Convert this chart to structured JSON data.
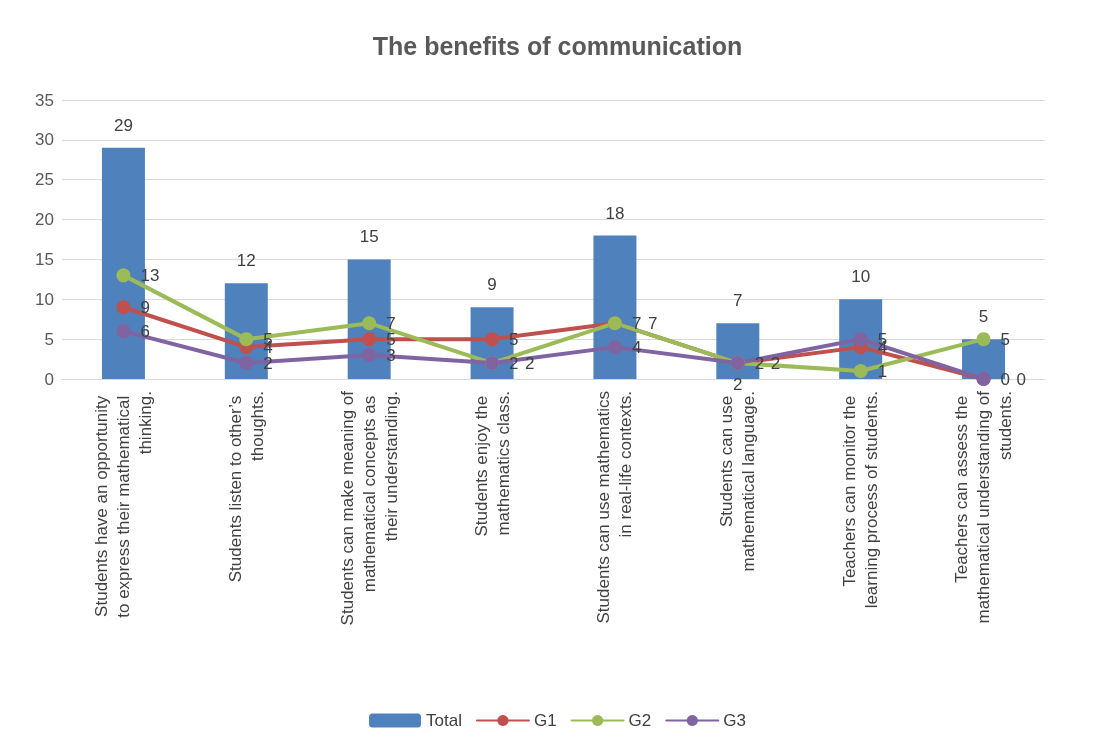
{
  "chart_data": {
    "type": "bar",
    "title": "The benefits of communication",
    "categories": [
      "Students have an opportunity to express their mathematical thinking.",
      "Students listen to other’s thoughts.",
      "Students can make meaning of mathematical concepts as their understanding.",
      "Students enjoy the mathematics class.",
      "Students can use mathematics in real-life contexts.",
      "Students can use mathematical language.",
      "Teachers can monitor the learning process of students.",
      "Teachers can assess the mathematical understanding of students."
    ],
    "series": [
      {
        "name": "Total",
        "color": "#4f81bd",
        "values": [
          29,
          12,
          15,
          9,
          18,
          7,
          10,
          5
        ]
      },
      {
        "name": "G1",
        "type": "line",
        "color": "#c0504d",
        "values": [
          9,
          4,
          5,
          5,
          7,
          2,
          4,
          0
        ]
      },
      {
        "name": "G2",
        "type": "line",
        "color": "#9bbb59",
        "values": [
          13,
          5,
          7,
          2,
          7,
          2,
          1,
          5
        ]
      },
      {
        "name": "G3",
        "type": "line",
        "color": "#8064a2",
        "values": [
          6,
          2,
          3,
          2,
          4,
          2,
          5,
          0
        ]
      }
    ],
    "ylim": [
      0,
      35
    ],
    "yticks": [
      0,
      5,
      10,
      15,
      20,
      25,
      30,
      35
    ],
    "grid": "y",
    "legend": "bottom",
    "marker": "circle",
    "data_labels": true
  }
}
